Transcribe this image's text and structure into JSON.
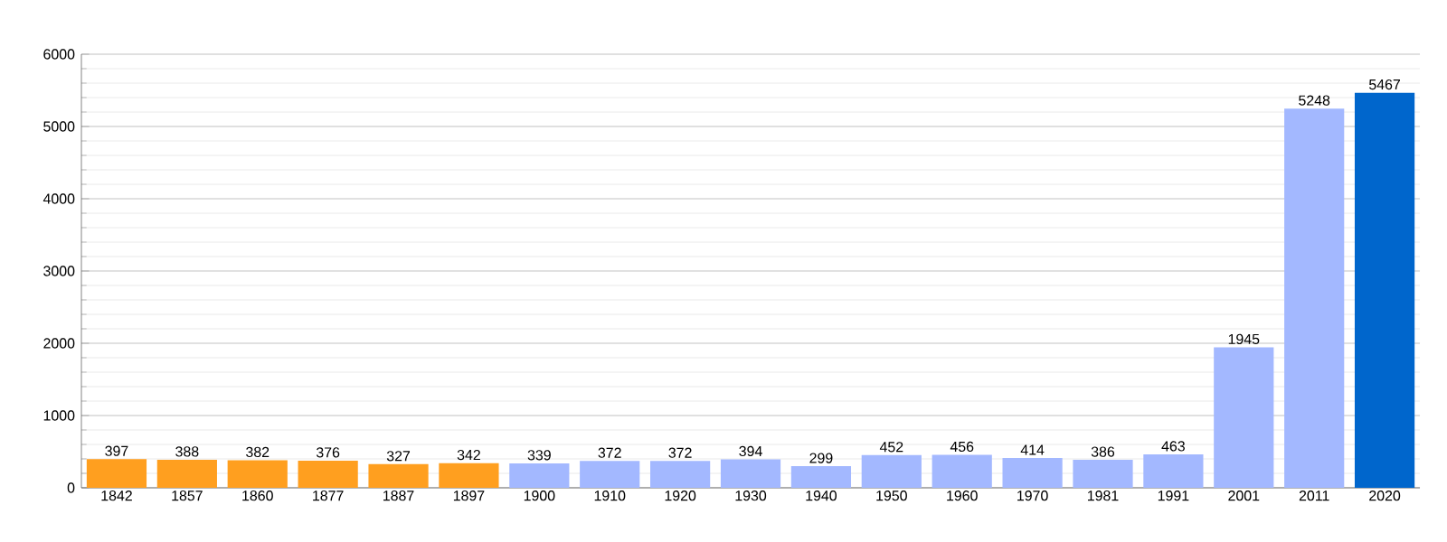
{
  "chart_data": {
    "type": "bar",
    "categories": [
      "1842",
      "1857",
      "1860",
      "1877",
      "1887",
      "1897",
      "1900",
      "1910",
      "1920",
      "1930",
      "1940",
      "1950",
      "1960",
      "1970",
      "1981",
      "1991",
      "2001",
      "2011",
      "2020"
    ],
    "values": [
      397,
      388,
      382,
      376,
      327,
      342,
      339,
      372,
      372,
      394,
      299,
      452,
      456,
      414,
      386,
      463,
      1945,
      5248,
      5467
    ],
    "colors": [
      "#ff9f1f",
      "#ff9f1f",
      "#ff9f1f",
      "#ff9f1f",
      "#ff9f1f",
      "#ff9f1f",
      "#a3b8ff",
      "#a3b8ff",
      "#a3b8ff",
      "#a3b8ff",
      "#a3b8ff",
      "#a3b8ff",
      "#a3b8ff",
      "#a3b8ff",
      "#a3b8ff",
      "#a3b8ff",
      "#a3b8ff",
      "#a3b8ff",
      "#0066cc"
    ],
    "ylim": [
      0,
      6000
    ],
    "yticks": [
      0,
      1000,
      2000,
      3000,
      4000,
      5000,
      6000
    ],
    "grid": "y",
    "data_labels": true
  }
}
